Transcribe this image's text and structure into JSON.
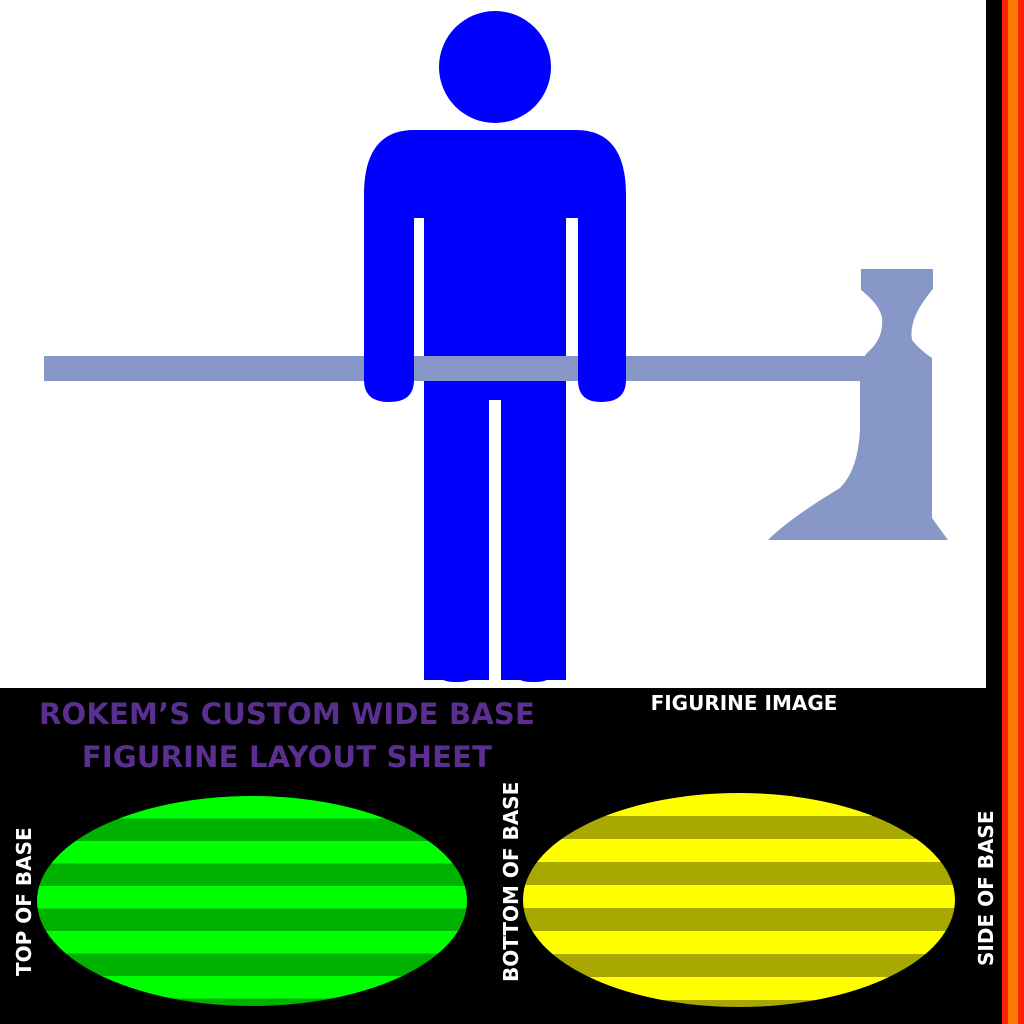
{
  "sheet": {
    "title_line1": "ROKEM’S CUSTOM WIDE BASE",
    "title_line2": "FIGURINE LAYOUT SHEET"
  },
  "labels": {
    "figurine_image": "FIGURINE IMAGE",
    "top_of_base": "TOP OF BASE",
    "bottom_of_base": "BOTTOM OF BASE",
    "side_of_base": "SIDE OF BASE"
  },
  "colors": {
    "figure": "#0000ff",
    "axe": "#8797c8",
    "top_stripe_light": "#00ff00",
    "top_stripe_dark": "#00b200",
    "bottom_stripe_light": "#ffff00",
    "bottom_stripe_dark": "#a8a800",
    "strip_red": "#ff2200",
    "strip_orange": "#ff7a00"
  }
}
